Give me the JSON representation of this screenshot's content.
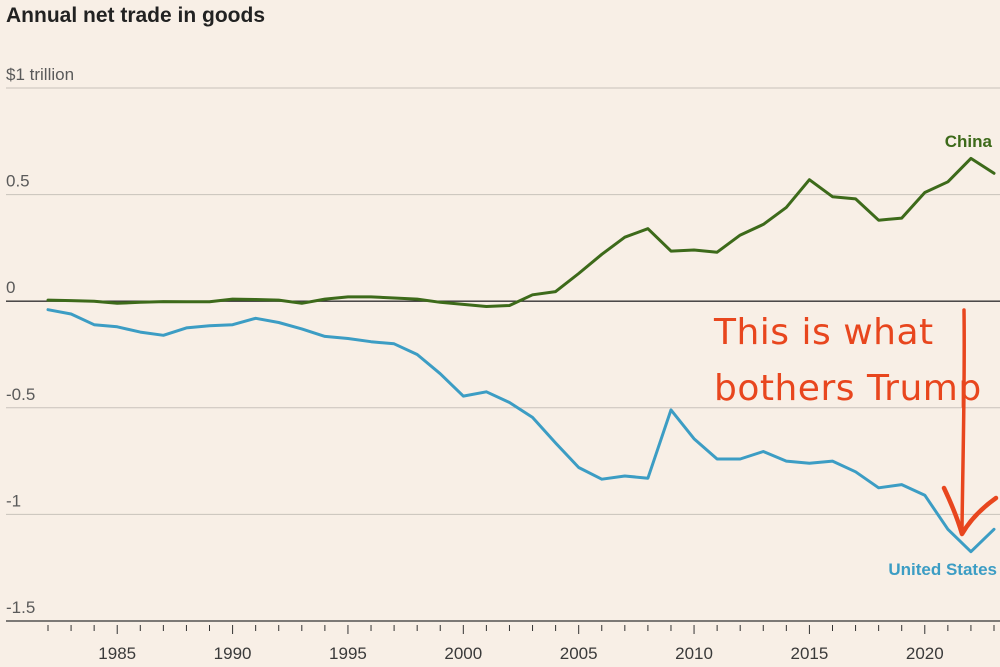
{
  "chart_data": {
    "type": "line",
    "title": "Annual net trade in goods",
    "y_unit_label": "$1 trillion",
    "ylim": [
      -1.5,
      1.0
    ],
    "y_ticks": [
      {
        "value": 0.5,
        "label": "0.5"
      },
      {
        "value": 0,
        "label": "0"
      },
      {
        "value": -0.5,
        "label": "-0.5"
      },
      {
        "value": -1.0,
        "label": "-1"
      },
      {
        "value": -1.5,
        "label": "-1.5"
      }
    ],
    "xlim": [
      1982,
      2023
    ],
    "x_ticks": [
      1985,
      1990,
      1995,
      2000,
      2005,
      2010,
      2015,
      2020
    ],
    "x_tick_labels": [
      "1985",
      "1990",
      "1995",
      "2000",
      "2005",
      "2010",
      "2015",
      "2020"
    ],
    "x": [
      1982,
      1983,
      1984,
      1985,
      1986,
      1987,
      1988,
      1989,
      1990,
      1991,
      1992,
      1993,
      1994,
      1995,
      1996,
      1997,
      1998,
      1999,
      2000,
      2001,
      2002,
      2003,
      2004,
      2005,
      2006,
      2007,
      2008,
      2009,
      2010,
      2011,
      2012,
      2013,
      2014,
      2015,
      2016,
      2017,
      2018,
      2019,
      2020,
      2021,
      2022,
      2023
    ],
    "series": [
      {
        "name": "China",
        "color": "#3d6a1a",
        "values": [
          0.005,
          0.003,
          0.0,
          -0.01,
          -0.005,
          -0.002,
          -0.003,
          -0.003,
          0.01,
          0.008,
          0.005,
          -0.01,
          0.01,
          0.02,
          0.02,
          0.015,
          0.01,
          -0.005,
          -0.015,
          -0.025,
          -0.02,
          0.03,
          0.045,
          0.13,
          0.22,
          0.3,
          0.34,
          0.235,
          0.24,
          0.23,
          0.31,
          0.36,
          0.44,
          0.57,
          0.49,
          0.48,
          0.38,
          0.39,
          0.51,
          0.56,
          0.67,
          0.6
        ]
      },
      {
        "name": "United States",
        "color": "#3c9dc4",
        "values": [
          -0.04,
          -0.06,
          -0.11,
          -0.12,
          -0.145,
          -0.16,
          -0.125,
          -0.115,
          -0.11,
          -0.08,
          -0.1,
          -0.13,
          -0.165,
          -0.175,
          -0.19,
          -0.2,
          -0.25,
          -0.34,
          -0.445,
          -0.425,
          -0.475,
          -0.545,
          -0.665,
          -0.78,
          -0.835,
          -0.82,
          -0.83,
          -0.51,
          -0.645,
          -0.74,
          -0.74,
          -0.705,
          -0.75,
          -0.76,
          -0.75,
          -0.8,
          -0.875,
          -0.86,
          -0.91,
          -1.07,
          -1.175,
          -1.07
        ]
      }
    ],
    "annotation": {
      "line1": "This is what",
      "line2": "bothers Trump",
      "color": "#e8461e"
    },
    "colors": {
      "background": "#f8efe6",
      "grid": "#c9c2bb",
      "zero_line": "#333333"
    }
  }
}
